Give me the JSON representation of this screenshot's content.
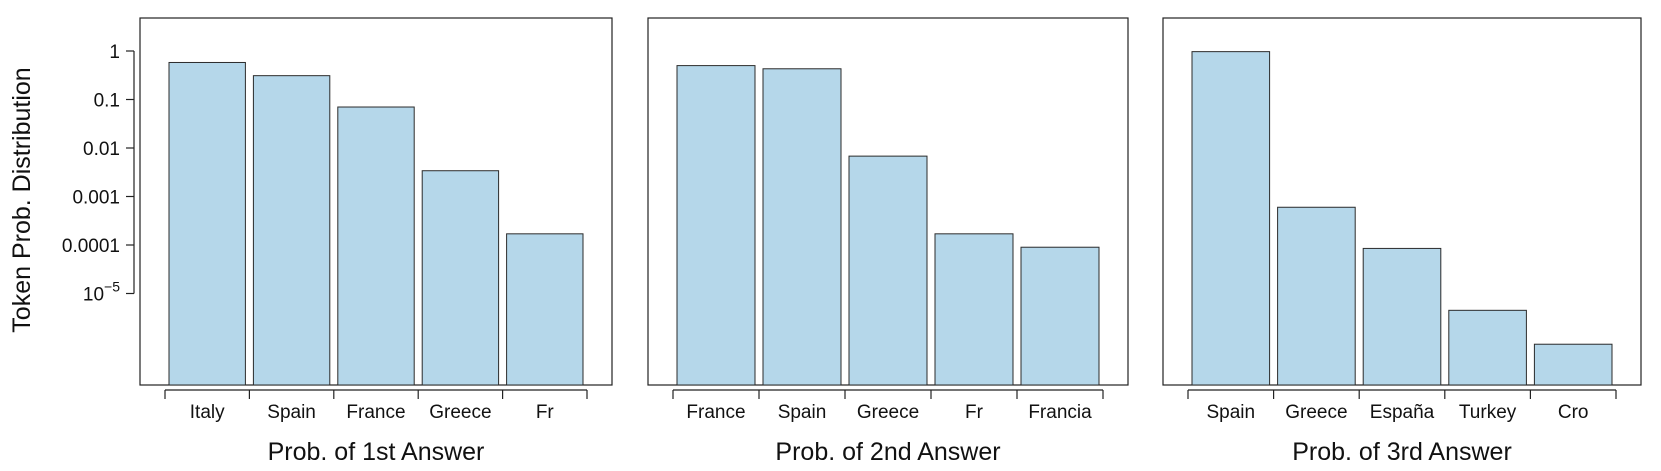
{
  "chart_data": [
    {
      "type": "bar",
      "yscale": "log",
      "ylabel": "Token Prob. Distribution",
      "xlabel": "Prob. of 1st Answer",
      "categories": [
        "Italy",
        "Spain",
        "France",
        "Greece",
        "Fr"
      ],
      "values": [
        0.58,
        0.31,
        0.07,
        0.0034,
        0.00017
      ],
      "yticks": [
        {
          "value": 1,
          "label": "1"
        },
        {
          "value": 0.1,
          "label": "0.1"
        },
        {
          "value": 0.01,
          "label": "0.01"
        },
        {
          "value": 0.001,
          "label": "0.001"
        },
        {
          "value": 0.0001,
          "label": "0.0001"
        },
        {
          "value": 1e-05,
          "label": "10",
          "sup": "−5"
        }
      ]
    },
    {
      "type": "bar",
      "yscale": "log",
      "xlabel": "Prob. of 2nd Answer",
      "categories": [
        "France",
        "Spain",
        "Greece",
        "Fr",
        "Francia"
      ],
      "values": [
        0.5,
        0.43,
        0.0068,
        0.00017,
        9e-05
      ]
    },
    {
      "type": "bar",
      "yscale": "log",
      "xlabel": "Prob. of 3rd Answer",
      "categories": [
        "Spain",
        "Greece",
        "España",
        "Turkey",
        "Cro"
      ],
      "values": [
        0.97,
        0.0006,
        8.5e-05,
        4.5e-06,
        9e-07
      ]
    }
  ],
  "colors": {
    "bar_fill": "#b5d7ea",
    "bar_stroke": "#2b2b2b",
    "frame": "#222222"
  }
}
